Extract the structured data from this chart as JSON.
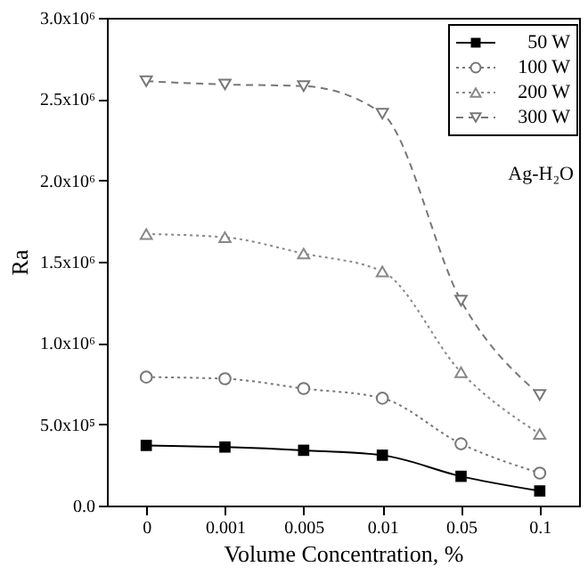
{
  "chart_data": {
    "type": "line",
    "xlabel": "Volume Concentration, %",
    "ylabel": "Ra",
    "categories": [
      "0",
      "0.001",
      "0.005",
      "0.01",
      "0.05",
      "0.1"
    ],
    "series": [
      {
        "name": "50 W",
        "color": "#000000",
        "marker": "square",
        "line_style": "solid",
        "values": [
          370000,
          360000,
          340000,
          310000,
          180000,
          90000
        ]
      },
      {
        "name": "100 W",
        "color": "#777777",
        "marker": "circle",
        "line_style": "dotted",
        "values": [
          790000,
          780000,
          720000,
          660000,
          380000,
          200000
        ]
      },
      {
        "name": "200 W",
        "color": "#888888",
        "marker": "triangle",
        "line_style": "dotted",
        "values": [
          1670000,
          1650000,
          1550000,
          1440000,
          820000,
          440000
        ]
      },
      {
        "name": "300 W",
        "color": "#777777",
        "marker": "triangle-down",
        "line_style": "dashed",
        "values": [
          2610000,
          2590000,
          2580000,
          2410000,
          1260000,
          680000
        ]
      }
    ],
    "ylim": [
      0,
      3000000
    ],
    "yticks": [
      {
        "value": 0,
        "label": "0.0"
      },
      {
        "value": 500000,
        "label": "5.0x10⁵"
      },
      {
        "value": 1000000,
        "label": "1.0x10⁶"
      },
      {
        "value": 1500000,
        "label": "1.5x10⁶"
      },
      {
        "value": 2000000,
        "label": "2.0x10⁶"
      },
      {
        "value": 2500000,
        "label": "2.5x10⁶"
      },
      {
        "value": 3000000,
        "label": "3.0x10⁶"
      }
    ],
    "annotations": [
      "Ag-H₂O"
    ],
    "legend": "top right",
    "grid": false
  }
}
